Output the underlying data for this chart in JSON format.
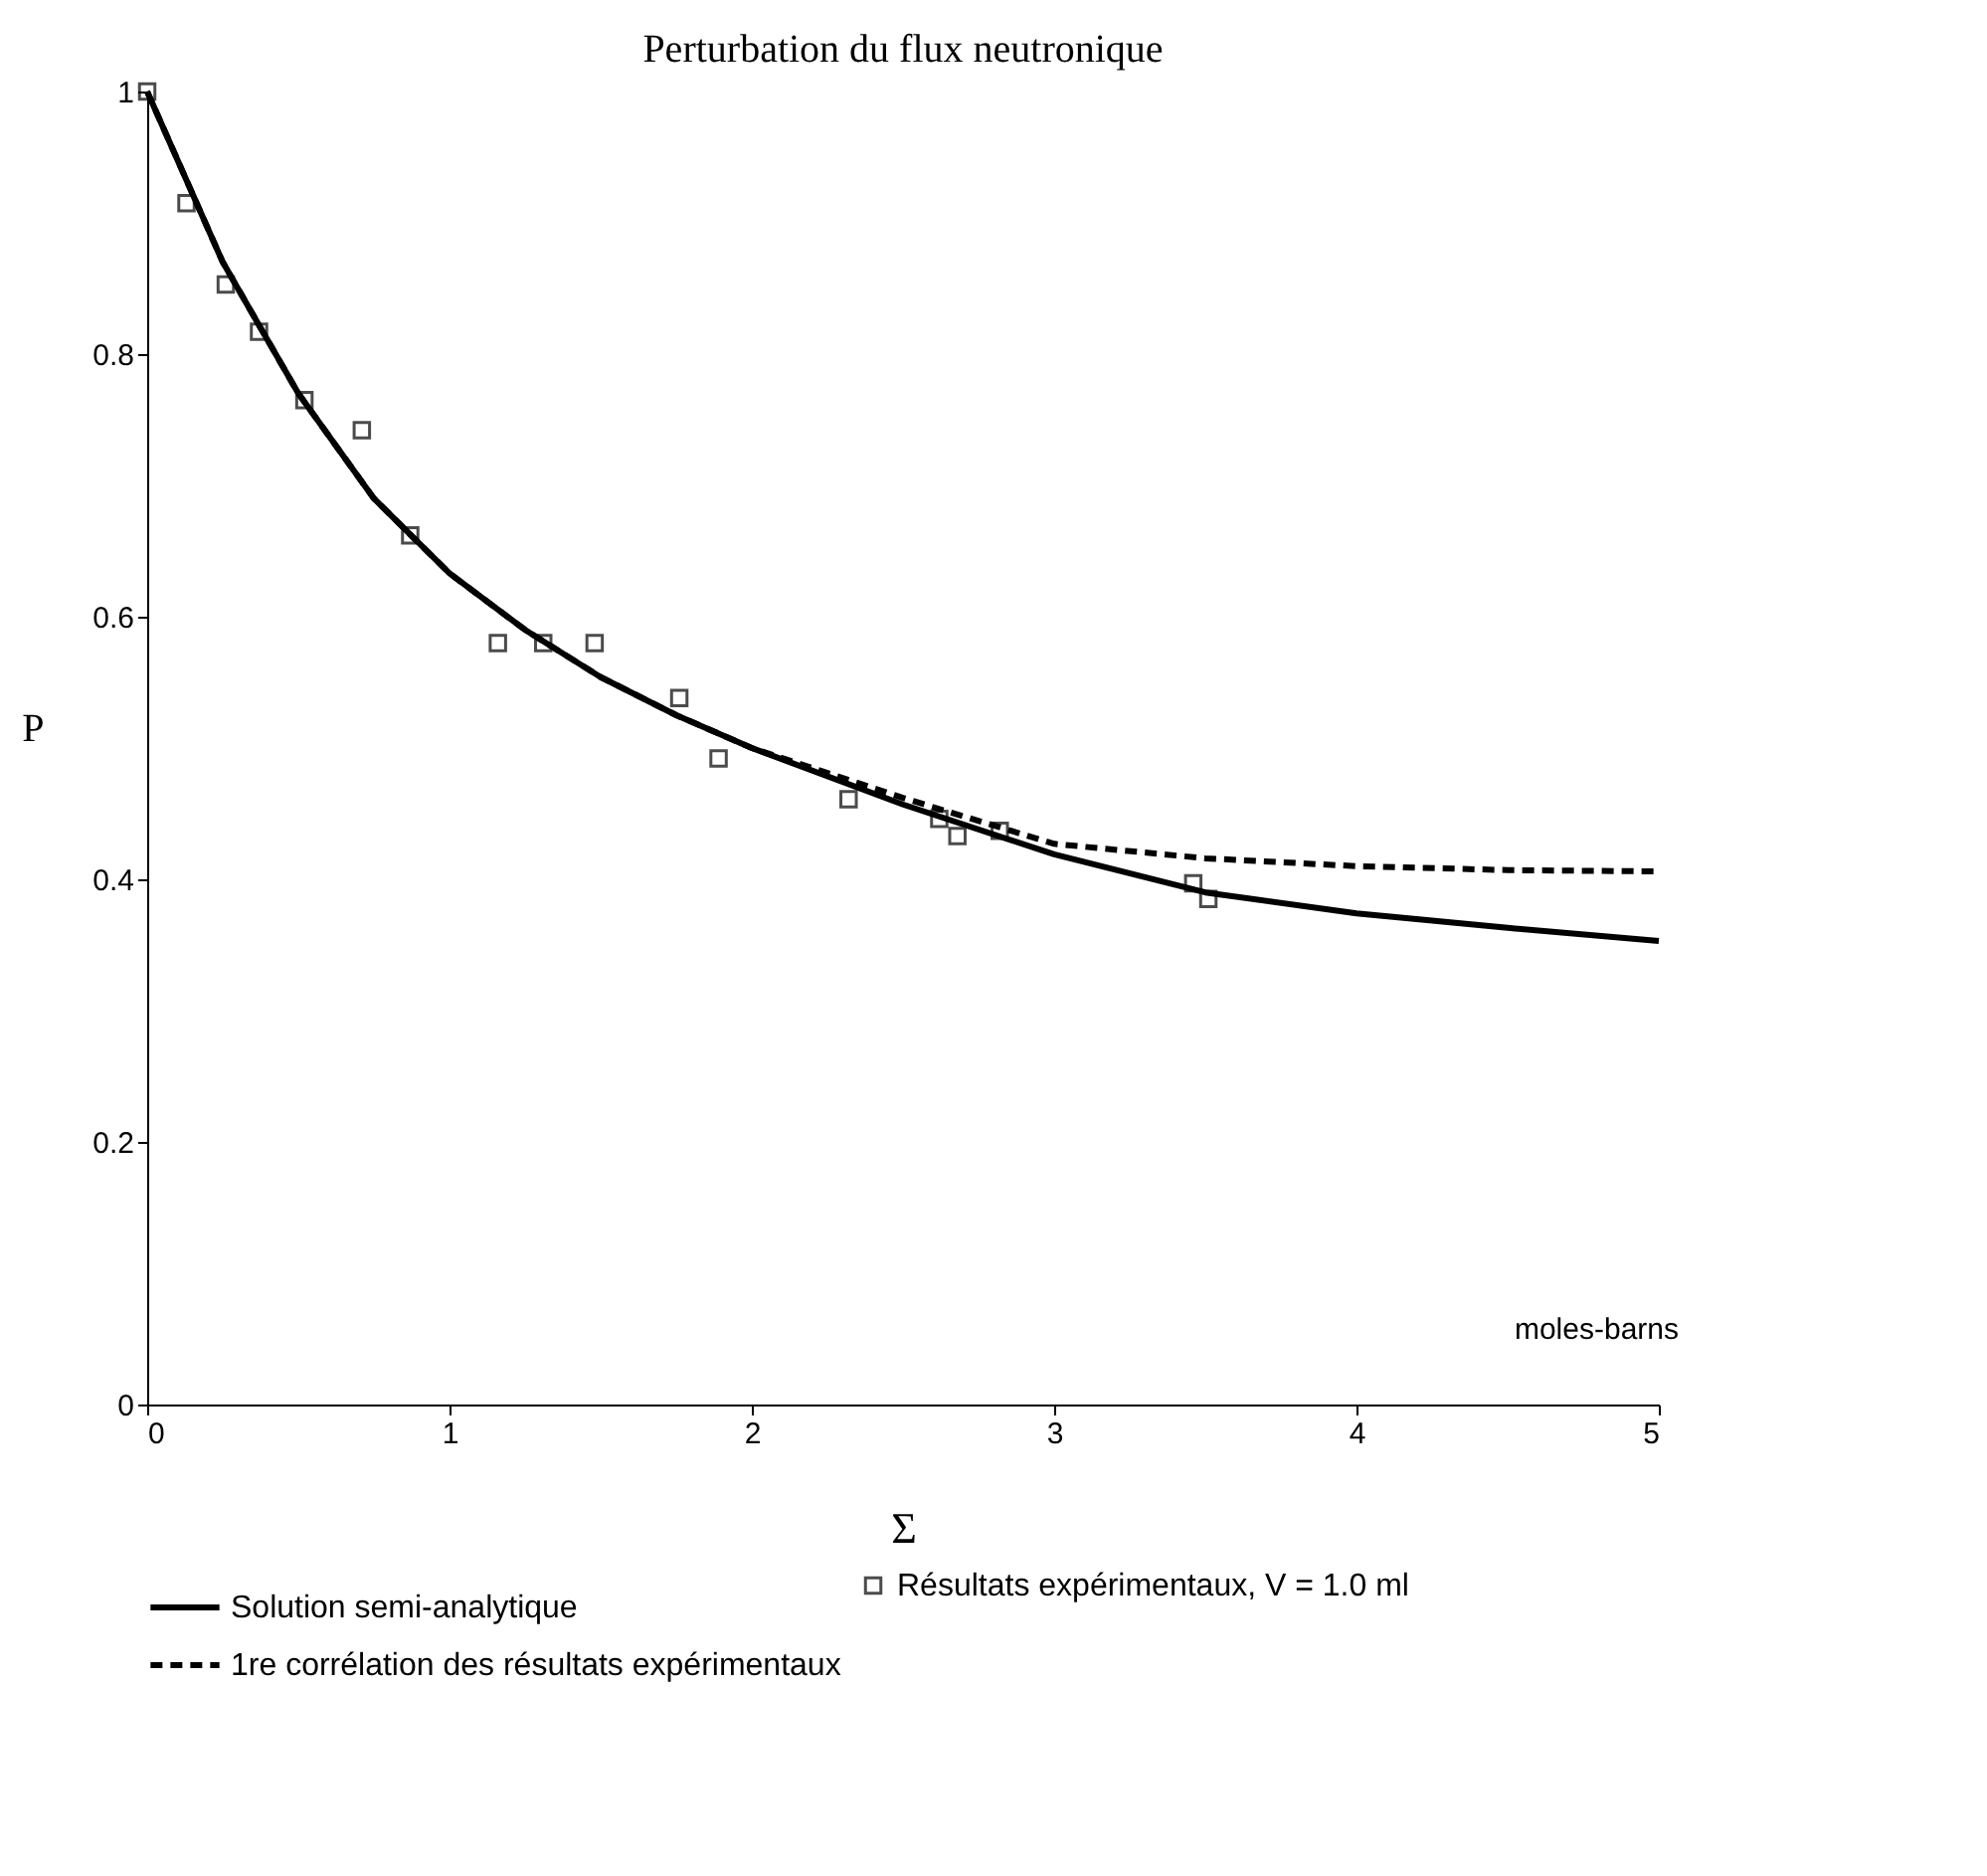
{
  "chart_data": {
    "type": "line",
    "title": "Perturbation du flux neutronique",
    "xlabel": "Σ",
    "ylabel": "P",
    "xlim": [
      0,
      5
    ],
    "xticks": [
      0,
      1,
      2,
      3,
      4,
      5
    ],
    "ylim": [
      0,
      1
    ],
    "yticks": [
      0,
      0.2,
      0.4,
      0.6,
      0.8,
      1
    ],
    "grid": false,
    "legend": "bottom",
    "annotations": [
      "moles-barns"
    ],
    "series": [
      {
        "name": "Résultats expérimentaux, V = 1.0 ml",
        "type": "scatter",
        "marker": "square",
        "color": "#000000",
        "x": [
          0,
          0.13,
          0.26,
          0.37,
          0.52,
          0.71,
          0.87,
          1.16,
          1.31,
          1.48,
          1.76,
          1.89,
          2.32,
          2.62,
          2.68,
          2.82,
          3.46,
          3.51
        ],
        "values": [
          1.0,
          0.915,
          0.853,
          0.817,
          0.765,
          0.742,
          0.662,
          0.58,
          0.58,
          0.58,
          0.538,
          0.492,
          0.461,
          0.446,
          0.433,
          0.437,
          0.397,
          0.385
        ]
      },
      {
        "name": "Solution semi-analytique",
        "type": "line",
        "line_style": "solid",
        "color": "#000000",
        "x": [
          0,
          0.25,
          0.5,
          0.75,
          1,
          1.25,
          1.5,
          1.75,
          2,
          2.5,
          3,
          3.5,
          4,
          4.5,
          5
        ],
        "values": [
          1.0,
          0.87,
          0.77,
          0.69,
          0.633,
          0.59,
          0.554,
          0.525,
          0.5,
          0.457,
          0.419,
          0.39,
          0.374,
          0.363,
          0.353
        ]
      },
      {
        "name": "1re corrélation des résultats expérimentaux",
        "type": "line",
        "line_style": "dashed",
        "color": "#000000",
        "x": [
          0,
          0.25,
          0.5,
          0.75,
          1,
          1.25,
          1.5,
          1.75,
          2,
          2.5,
          3,
          3.5,
          4,
          4.5,
          5
        ],
        "values": [
          1.0,
          0.87,
          0.77,
          0.69,
          0.633,
          0.59,
          0.554,
          0.525,
          0.5,
          0.462,
          0.427,
          0.416,
          0.41,
          0.407,
          0.406
        ]
      }
    ]
  }
}
